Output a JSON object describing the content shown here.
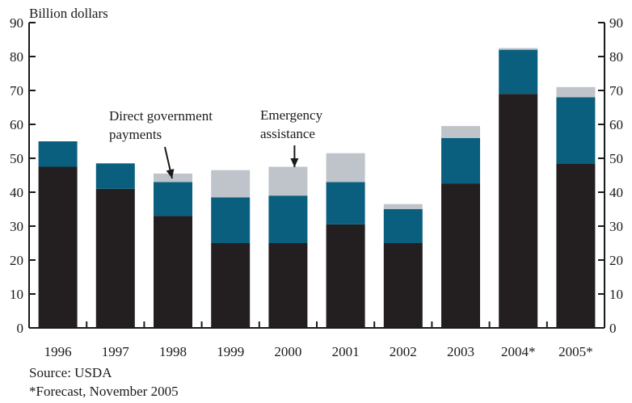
{
  "chart_data": {
    "type": "bar",
    "stacked": true,
    "ylabel": "Billion dollars",
    "ylim": [
      0,
      90
    ],
    "yticks": [
      0,
      10,
      20,
      30,
      40,
      50,
      60,
      70,
      80,
      90
    ],
    "grid": false,
    "categories": [
      "1996",
      "1997",
      "1998",
      "1999",
      "2000",
      "2001",
      "2002",
      "2003",
      "2004*",
      "2005*"
    ],
    "series": [
      {
        "key": "base",
        "color": "#231f20",
        "values": [
          47.5,
          41,
          33,
          25,
          25,
          30.5,
          25,
          42.5,
          69,
          48.5
        ]
      },
      {
        "name": "Direct government payments",
        "color": "#0a5f7f",
        "values": [
          7.5,
          7.5,
          10,
          13.5,
          14,
          12.5,
          10,
          13.5,
          13,
          19.5
        ]
      },
      {
        "name": "Emergency assistance",
        "color": "#bfc3ca",
        "values": [
          0,
          0,
          2.5,
          8,
          8.5,
          8.5,
          1.5,
          3.5,
          0.5,
          3
        ]
      }
    ],
    "annotations": [
      {
        "text_lines": [
          "Direct government",
          "payments"
        ],
        "points_to": "1998",
        "series": "Direct government payments"
      },
      {
        "text_lines": [
          "Emergency",
          "assistance"
        ],
        "points_to": "2000",
        "series": "Emergency assistance"
      }
    ]
  },
  "footer": {
    "source": "Source: USDA",
    "note": "*Forecast, November 2005"
  }
}
